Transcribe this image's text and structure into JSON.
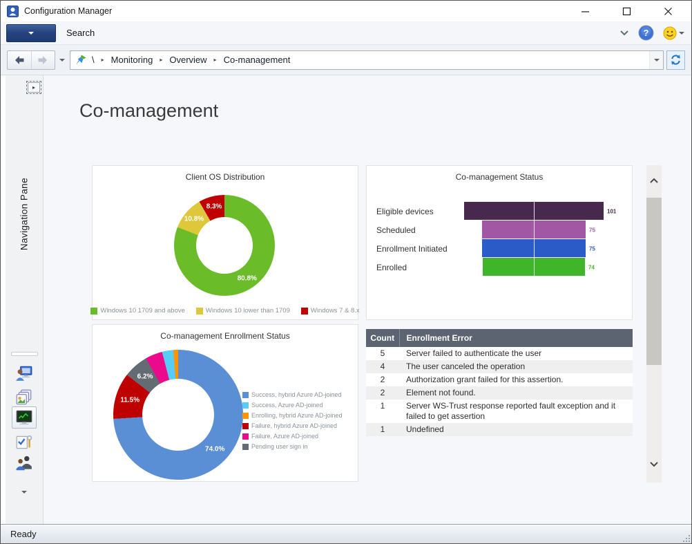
{
  "window": {
    "title": "Configuration Manager",
    "status": "Ready"
  },
  "ribbon": {
    "search_tab": "Search"
  },
  "address_bar": {
    "root": "\\",
    "separator": "▸",
    "path": [
      "Monitoring",
      "Overview",
      "Co-management"
    ]
  },
  "navigation": {
    "collapsed_label": "Navigation Pane",
    "workspace_icons": [
      "user-computer-icon",
      "software-library-icon",
      "monitoring-icon",
      "administration-icon",
      "community-icon"
    ],
    "selected_workspace_index": 2
  },
  "page": {
    "title": "Co-management"
  },
  "chart_data": [
    {
      "type": "pie",
      "title": "Client OS Distribution",
      "slices": [
        {
          "label": "Windows 10 1709 and above",
          "value": 80.8,
          "color": "#6abc29",
          "data_label": "80.8%",
          "show_label": true
        },
        {
          "label": "Windows 10 lower than 1709",
          "value": 10.8,
          "color": "#dfc73c",
          "data_label": "10.8%",
          "show_label": true
        },
        {
          "label": "Windows 7 & 8.x",
          "value": 8.3,
          "color": "#c00000",
          "data_label": "8.3%",
          "show_label": true
        }
      ],
      "draw_order": [
        0,
        1,
        2
      ],
      "legend_position": "bottom"
    },
    {
      "type": "bar",
      "title": "Co-management Status",
      "orientation": "horizontal-funnel",
      "categories": [
        "Eligible devices",
        "Scheduled",
        "Enrollment Initiated",
        "Enrolled"
      ],
      "values": [
        101,
        75,
        75,
        74
      ],
      "colors": [
        "#46294c",
        "#a257a5",
        "#2b5bc7",
        "#3fb62a"
      ],
      "xlim": [
        0,
        101
      ]
    },
    {
      "type": "pie",
      "title": "Co-management Enrollment Status",
      "slices": [
        {
          "label": "Success, hybrid Azure AD-joined",
          "value": 74.0,
          "color": "#5a8fd6",
          "data_label": "74.0%",
          "show_label": true
        },
        {
          "label": "Success, Azure AD-joined",
          "value": 2.8,
          "color": "#57ccf5",
          "show_label": false
        },
        {
          "label": "Enrolling, hybrid Azure AD-joined",
          "value": 1.2,
          "color": "#ff9300",
          "show_label": false
        },
        {
          "label": "Failure, hybrid Azure AD-joined",
          "value": 11.5,
          "color": "#bf0000",
          "data_label": "11.5%",
          "show_label": true
        },
        {
          "label": "Failure, Azure AD-joined",
          "value": 4.3,
          "color": "#eb0a8c",
          "show_label": false
        },
        {
          "label": "Pending user sign in",
          "value": 6.2,
          "color": "#646b72",
          "data_label": "6.2%",
          "show_label": true
        }
      ],
      "draw_order": [
        0,
        3,
        5,
        4,
        1,
        2
      ],
      "legend_position": "right"
    },
    {
      "type": "table",
      "columns": [
        "Count",
        "Enrollment Error"
      ],
      "rows": [
        [
          "5",
          "Server failed to authenticate the user"
        ],
        [
          "4",
          "The user canceled the operation"
        ],
        [
          "2",
          "Authorization grant failed for this assertion."
        ],
        [
          "2",
          "Element not found."
        ],
        [
          "1",
          "Server WS-Trust response reported fault exception and it failed to get assertion"
        ],
        [
          "1",
          "Undefined"
        ]
      ]
    }
  ]
}
